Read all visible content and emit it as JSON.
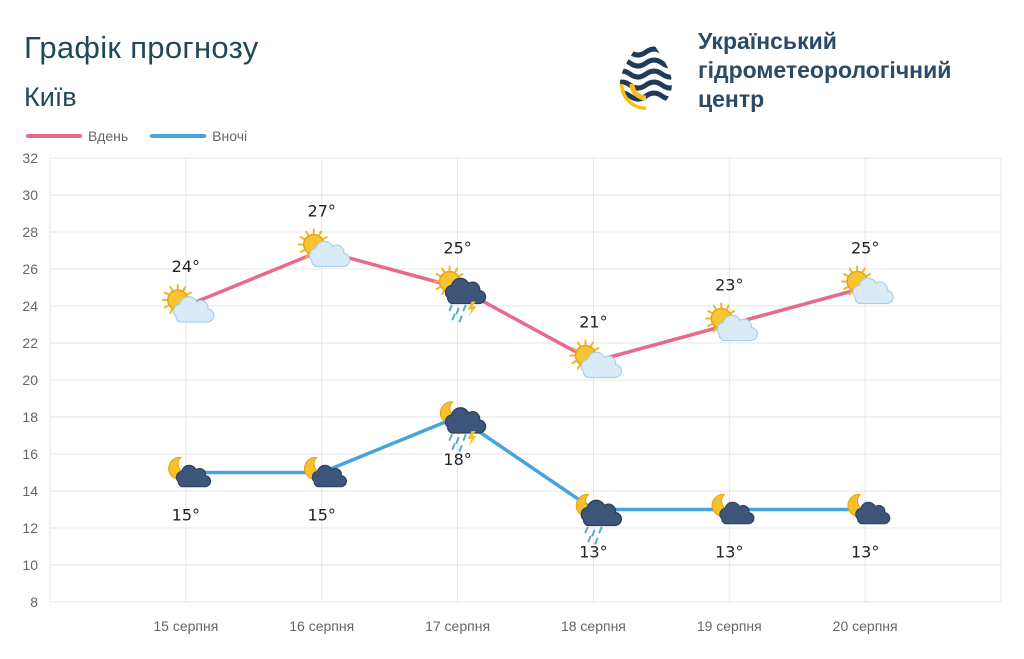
{
  "header": {
    "title": "Графік прогнозу",
    "city": "Київ",
    "org_lines": [
      "Український",
      "гідрометеорологічний",
      "центр"
    ]
  },
  "colors": {
    "day": "#e8698a",
    "night": "#46a3dc",
    "grid": "#e6e6e6",
    "text": "#1d4a57"
  },
  "chart_data": {
    "type": "line",
    "categories": [
      "15 серпня",
      "16 серпня",
      "17 серпня",
      "18 серпня",
      "19 серпня",
      "20 серпня"
    ],
    "series": [
      {
        "name": "Вдень",
        "values": [
          24,
          27,
          25,
          21,
          23,
          25
        ],
        "labels": [
          "24°",
          "27°",
          "25°",
          "21°",
          "23°",
          "25°"
        ],
        "icons": [
          "sun-cloud-icon",
          "sun-cloud-icon",
          "sun-storm-rain-icon",
          "sun-cloud-icon",
          "sun-cloud-icon",
          "sun-cloud-icon"
        ]
      },
      {
        "name": "Вночі",
        "values": [
          15,
          15,
          18,
          13,
          13,
          13
        ],
        "labels": [
          "15°",
          "15°",
          "18°",
          "13°",
          "13°",
          "13°"
        ],
        "icons": [
          "moon-cloud-icon",
          "moon-cloud-icon",
          "moon-storm-rain-icon",
          "moon-cloud-rain-icon",
          "moon-cloud-icon",
          "moon-cloud-icon"
        ]
      }
    ],
    "yticks": [
      "32",
      "30",
      "28",
      "26",
      "24",
      "22",
      "20",
      "18",
      "16",
      "14",
      "12",
      "10",
      "8"
    ],
    "ylim": [
      8,
      32
    ],
    "grid": true,
    "legend_position": "top-left"
  }
}
